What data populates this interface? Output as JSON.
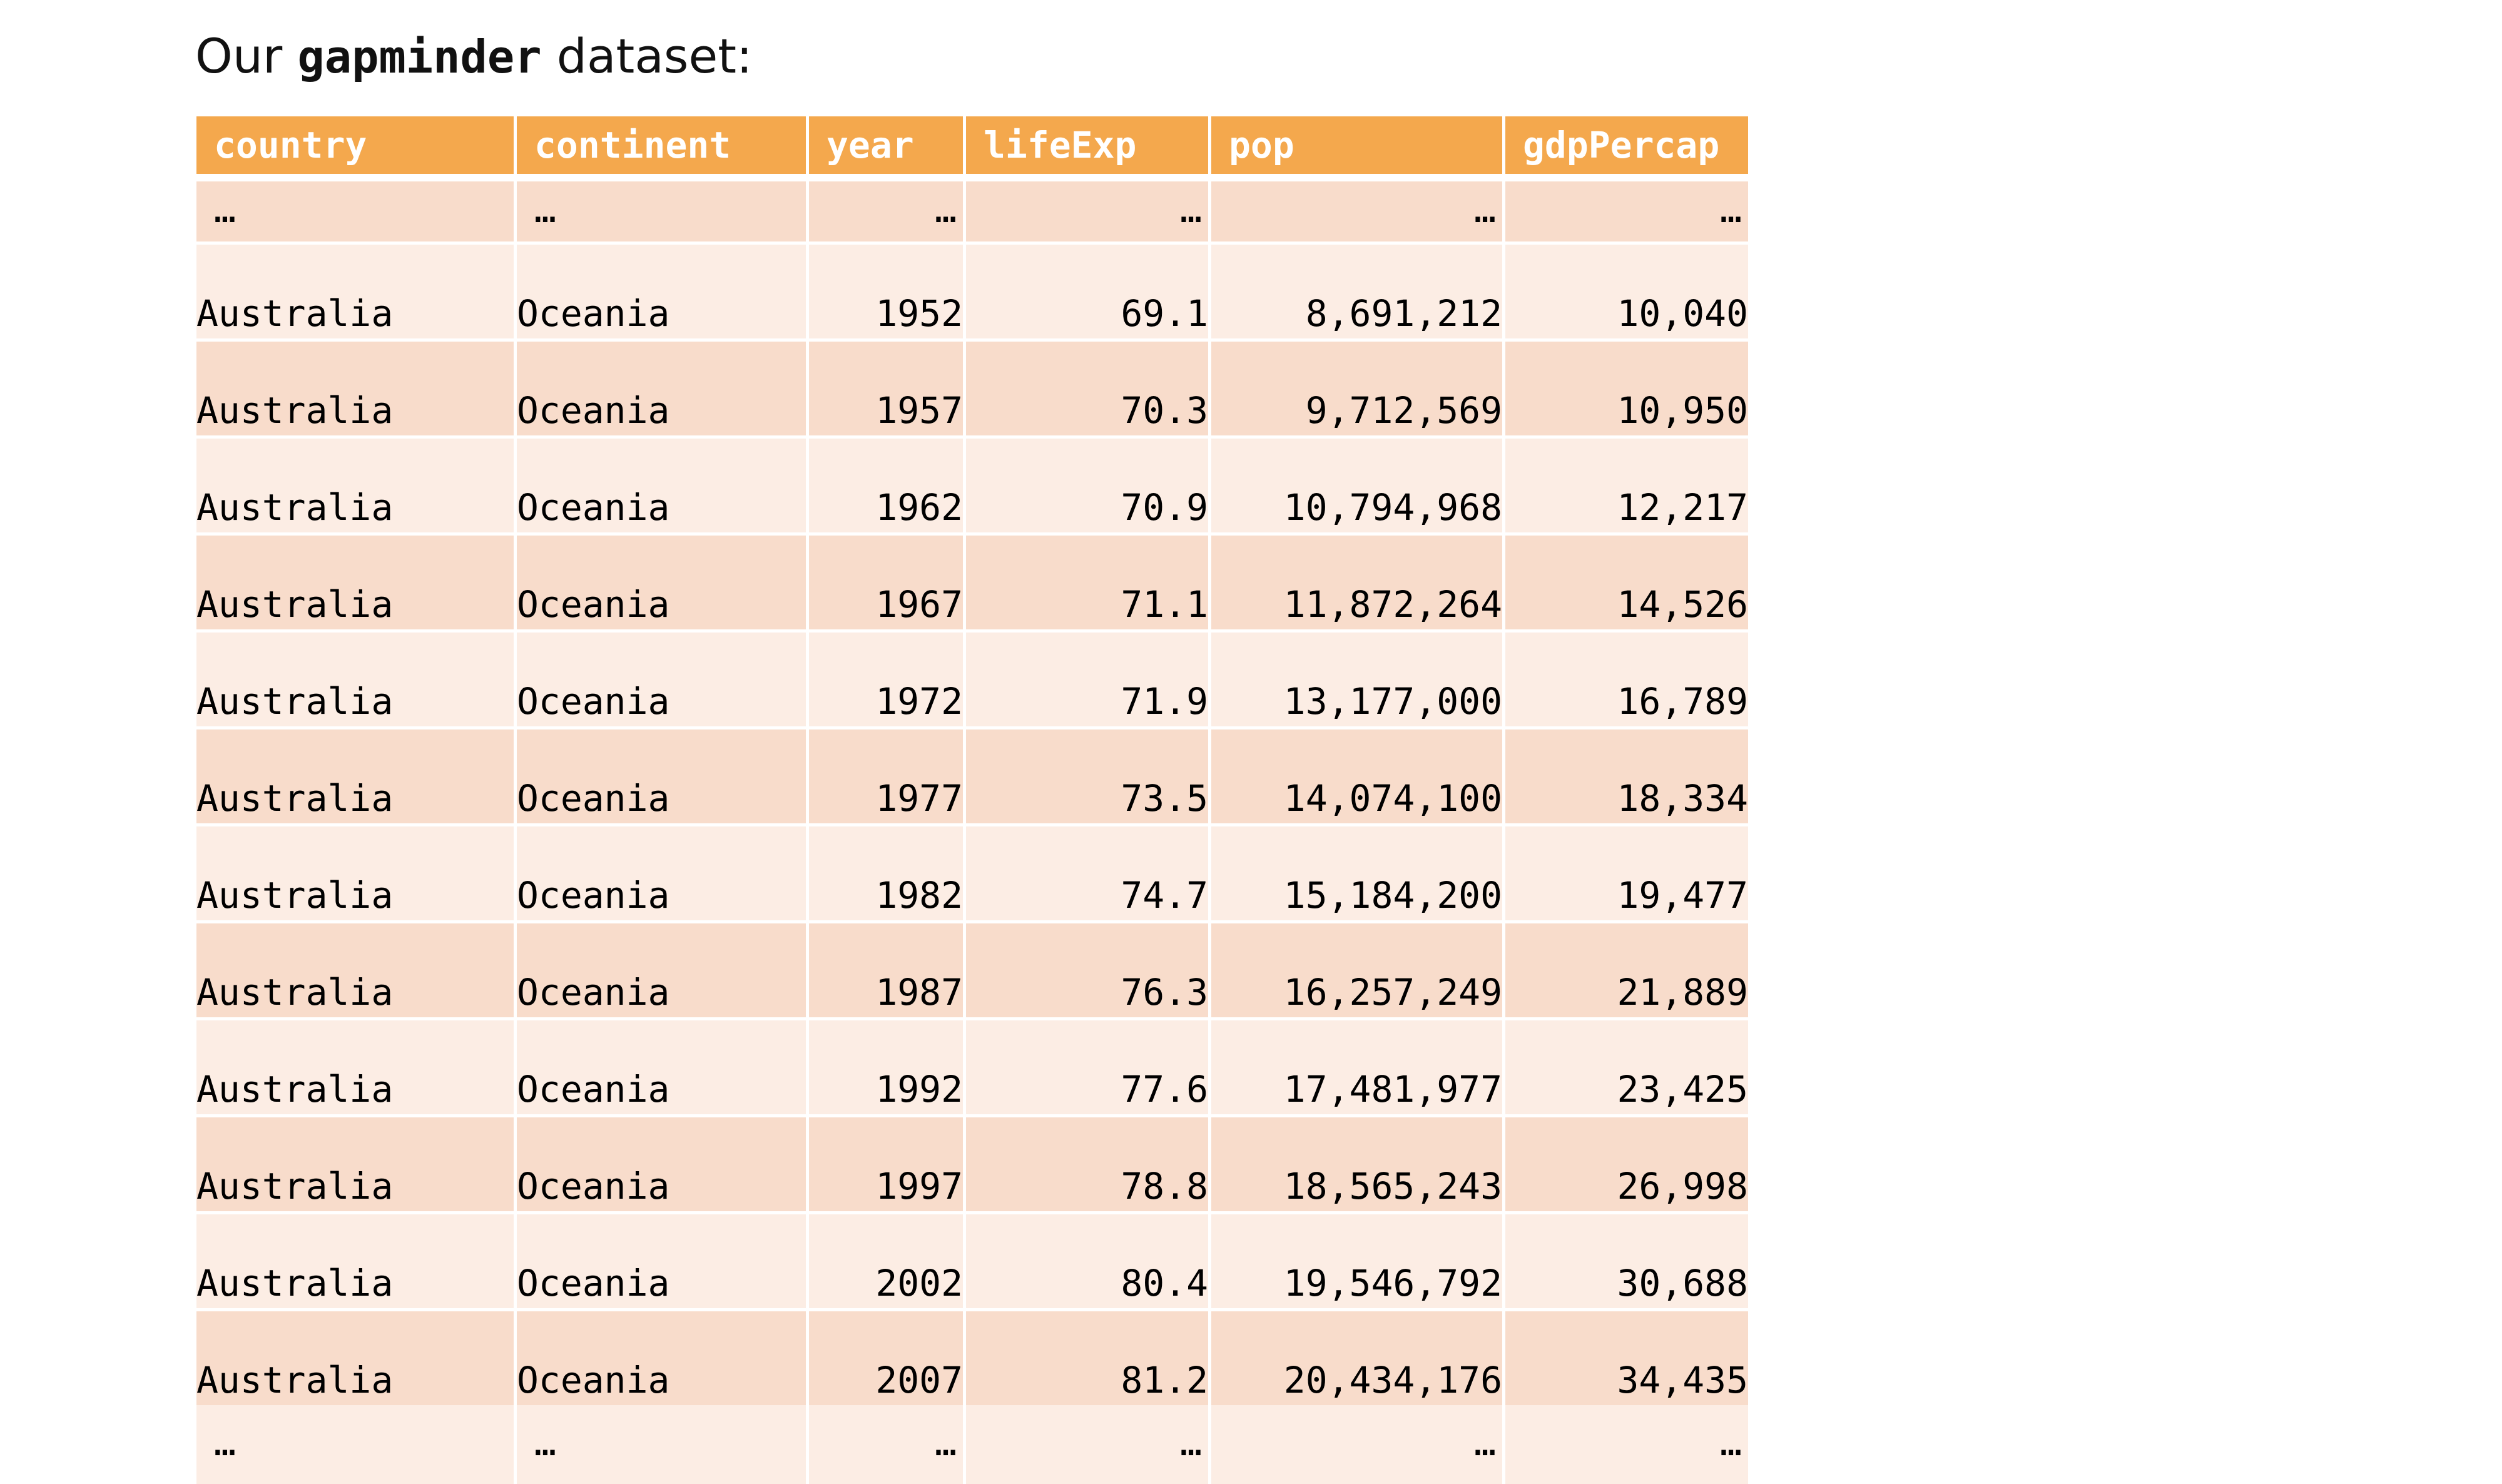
{
  "title": {
    "prefix": "Our",
    "dataset_name": "gapminder",
    "suffix": "dataset:"
  },
  "table": {
    "headers": [
      "country",
      "continent",
      "year",
      "lifeExp",
      "pop",
      "gdpPercap"
    ],
    "ellipsis": "…",
    "rows": [
      [
        "Australia",
        "Oceania",
        "1952",
        "69.1",
        "8,691,212",
        "10,040"
      ],
      [
        "Australia",
        "Oceania",
        "1957",
        "70.3",
        "9,712,569",
        "10,950"
      ],
      [
        "Australia",
        "Oceania",
        "1962",
        "70.9",
        "10,794,968",
        "12,217"
      ],
      [
        "Australia",
        "Oceania",
        "1967",
        "71.1",
        "11,872,264",
        "14,526"
      ],
      [
        "Australia",
        "Oceania",
        "1972",
        "71.9",
        "13,177,000",
        "16,789"
      ],
      [
        "Australia",
        "Oceania",
        "1977",
        "73.5",
        "14,074,100",
        "18,334"
      ],
      [
        "Australia",
        "Oceania",
        "1982",
        "74.7",
        "15,184,200",
        "19,477"
      ],
      [
        "Australia",
        "Oceania",
        "1987",
        "76.3",
        "16,257,249",
        "21,889"
      ],
      [
        "Australia",
        "Oceania",
        "1992",
        "77.6",
        "17,481,977",
        "23,425"
      ],
      [
        "Australia",
        "Oceania",
        "1997",
        "78.8",
        "18,565,243",
        "26,998"
      ],
      [
        "Australia",
        "Oceania",
        "2002",
        "80.4",
        "19,546,792",
        "30,688"
      ],
      [
        "Australia",
        "Oceania",
        "2007",
        "81.2",
        "20,434,176",
        "34,435"
      ]
    ]
  },
  "colors": {
    "header_bg": "#f4a84d",
    "row_light": "#fcede4",
    "row_dark": "#f8dccb"
  }
}
